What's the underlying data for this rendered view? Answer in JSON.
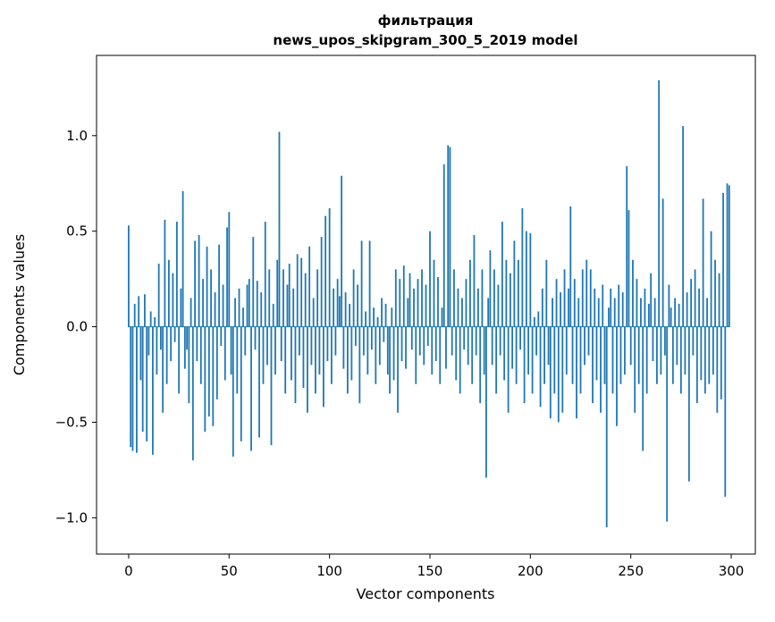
{
  "figure": {
    "background": "#ffffff",
    "frame_color": "#000000"
  },
  "chart_data": {
    "type": "bar",
    "title": "фильтрация",
    "subtitle": "news_upos_skipgram_300_5_2019 model",
    "xlabel": "Vector components",
    "ylabel": "Components values",
    "xlim": [
      -16,
      312
    ],
    "ylim": [
      -1.19,
      1.42
    ],
    "xticks": [
      0,
      50,
      100,
      150,
      200,
      250,
      300
    ],
    "yticks": [
      -1.0,
      -0.5,
      0.0,
      0.5,
      1.0
    ],
    "legend": "none",
    "grid": false,
    "bar_color": "#1f77b4",
    "bar_width": 0.8,
    "x_start": 0,
    "values": [
      0.53,
      -0.63,
      -0.65,
      0.12,
      -0.66,
      0.16,
      -0.28,
      -0.55,
      0.17,
      -0.6,
      -0.15,
      0.08,
      -0.67,
      0.05,
      -0.25,
      0.33,
      -0.12,
      -0.45,
      0.56,
      -0.3,
      0.35,
      -0.18,
      0.28,
      -0.08,
      0.55,
      -0.35,
      0.2,
      0.71,
      -0.22,
      -0.12,
      -0.4,
      0.15,
      -0.7,
      0.45,
      -0.18,
      0.48,
      -0.3,
      0.25,
      -0.55,
      0.42,
      -0.47,
      0.3,
      -0.52,
      0.18,
      -0.38,
      0.43,
      -0.1,
      0.22,
      -0.28,
      0.52,
      0.6,
      -0.25,
      -0.68,
      0.15,
      -0.35,
      0.2,
      -0.6,
      0.1,
      -0.15,
      0.22,
      0.25,
      -0.65,
      0.47,
      -0.12,
      0.24,
      -0.58,
      0.18,
      -0.3,
      0.55,
      -0.2,
      0.3,
      -0.62,
      0.12,
      -0.25,
      0.35,
      1.02,
      -0.18,
      0.3,
      -0.35,
      0.22,
      0.33,
      -0.28,
      0.2,
      -0.4,
      0.38,
      -0.15,
      0.36,
      -0.32,
      0.28,
      -0.45,
      0.42,
      -0.2,
      0.15,
      -0.35,
      0.3,
      -0.25,
      0.47,
      -0.42,
      0.58,
      -0.18,
      0.62,
      -0.3,
      0.2,
      -0.15,
      0.25,
      0.16,
      0.79,
      -0.22,
      0.18,
      -0.35,
      0.12,
      -0.28,
      0.3,
      -0.1,
      0.22,
      -0.4,
      0.45,
      -0.15,
      0.08,
      -0.25,
      0.45,
      -0.12,
      0.1,
      -0.3,
      0.05,
      -0.2,
      0.15,
      -0.08,
      0.12,
      -0.25,
      -0.35,
      0.1,
      -0.28,
      0.3,
      -0.45,
      0.25,
      -0.18,
      0.32,
      -0.22,
      0.15,
      0.28,
      -0.12,
      0.2,
      -0.3,
      0.25,
      -0.15,
      0.3,
      -0.2,
      0.22,
      -0.1,
      0.5,
      -0.25,
      0.35,
      -0.18,
      0.26,
      -0.3,
      0.1,
      0.85,
      -0.22,
      0.95,
      0.94,
      -0.15,
      0.3,
      -0.28,
      0.2,
      -0.35,
      0.15,
      -0.12,
      0.25,
      -0.2,
      0.35,
      -0.3,
      0.48,
      -0.15,
      0.2,
      -0.4,
      0.3,
      -0.25,
      -0.79,
      0.15,
      0.4,
      -0.2,
      0.3,
      -0.35,
      0.22,
      -0.15,
      0.55,
      -0.28,
      0.35,
      -0.45,
      0.28,
      -0.22,
      0.45,
      -0.3,
      0.35,
      -0.12,
      0.62,
      -0.4,
      0.5,
      -0.25,
      0.49,
      -0.35,
      0.05,
      -0.15,
      0.08,
      -0.42,
      0.2,
      -0.3,
      0.35,
      -0.2,
      -0.48,
      0.15,
      -0.35,
      0.25,
      -0.5,
      0.18,
      -0.45,
      0.3,
      -0.25,
      0.2,
      0.63,
      -0.3,
      0.25,
      -0.48,
      0.15,
      -0.35,
      0.3,
      -0.2,
      0.35,
      -0.15,
      0.3,
      -0.4,
      0.2,
      -0.28,
      0.15,
      -0.45,
      0.22,
      -0.3,
      -1.05,
      0.1,
      0.2,
      -0.35,
      0.15,
      -0.52,
      0.22,
      -0.3,
      0.18,
      -0.25,
      0.84,
      0.61,
      -0.2,
      0.35,
      -0.45,
      0.25,
      -0.3,
      0.15,
      -0.65,
      0.2,
      -0.35,
      0.12,
      0.28,
      -0.18,
      0.15,
      -0.3,
      1.29,
      -0.25,
      0.67,
      -0.15,
      -1.02,
      0.22,
      0.1,
      -0.3,
      0.15,
      -0.2,
      0.12,
      -0.35,
      1.05,
      -0.25,
      0.18,
      -0.81,
      0.25,
      -0.15,
      0.3,
      -0.4,
      0.2,
      -0.28,
      0.67,
      -0.35,
      0.15,
      -0.3,
      0.5,
      -0.25,
      0.35,
      -0.45,
      0.28,
      -0.38,
      0.7,
      -0.89,
      0.75,
      0.74
    ]
  }
}
